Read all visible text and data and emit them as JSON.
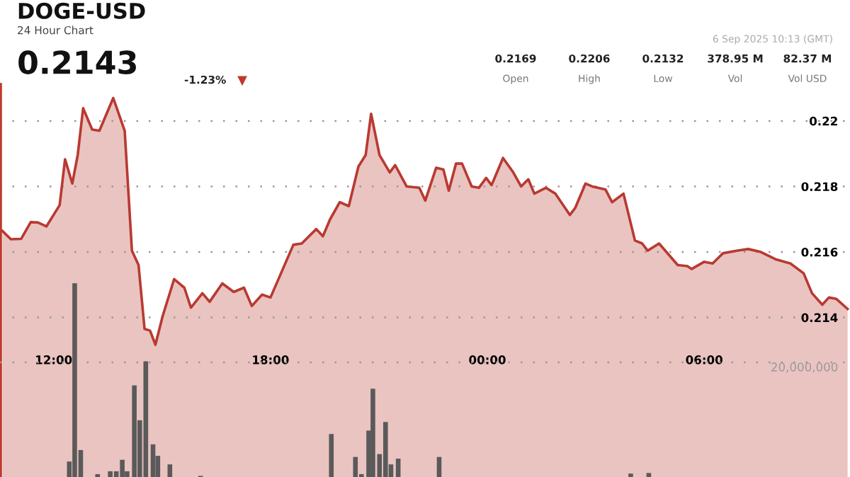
{
  "chart_data": {
    "type": "area",
    "title": "DOGE-USD",
    "subtitle": "24 Hour Chart",
    "annotations": [
      "0.2143",
      "-1.23%",
      "▼",
      "6 Sep 2025 10:13 (GMT)",
      "0.2169",
      "0.2206",
      "0.2132",
      "378.95 M",
      "82.37 M",
      "Open",
      "High",
      "Low",
      "Vol",
      "Vol USD"
    ],
    "xlim": [
      "2025-09-05T10:31",
      "2025-09-06T10:02"
    ],
    "xticks": [
      {
        "value": "2025-09-05T12:00",
        "label": "12:00"
      },
      {
        "value": "2025-09-05T18:00",
        "label": "18:00"
      },
      {
        "value": "2025-09-06T00:00",
        "label": "00:00"
      },
      {
        "value": "2025-09-06T06:00",
        "label": "06:00"
      }
    ],
    "ylim": [
      0.20913,
      0.2211
    ],
    "yticks": [
      0.214,
      0.216,
      0.218,
      0.22
    ],
    "y2lim": [
      0,
      68400000
    ],
    "y2ticks": [
      {
        "value": 20000000,
        "label": "20,000,000"
      }
    ],
    "grid": "y",
    "series": [
      {
        "color": "#b83a32",
        "x": [
          "2025-09-05T10:35",
          "2025-09-05T10:49",
          "2025-09-05T11:06",
          "2025-09-05T11:22",
          "2025-09-05T11:34",
          "2025-09-05T11:48",
          "2025-09-05T12:10",
          "2025-09-05T12:19",
          "2025-09-05T12:31",
          "2025-09-05T12:40",
          "2025-09-05T12:49",
          "2025-09-05T13:04",
          "2025-09-05T13:16",
          "2025-09-05T13:39",
          "2025-09-05T13:58",
          "2025-09-05T14:10",
          "2025-09-05T14:21",
          "2025-09-05T14:31",
          "2025-09-05T14:40",
          "2025-09-05T14:49",
          "2025-09-05T15:01",
          "2025-09-05T15:20",
          "2025-09-05T15:37",
          "2025-09-05T15:48",
          "2025-09-05T16:07",
          "2025-09-05T16:19",
          "2025-09-05T16:40",
          "2025-09-05T16:59",
          "2025-09-05T17:16",
          "2025-09-05T17:29",
          "2025-09-05T17:46",
          "2025-09-05T18:00",
          "2025-09-05T18:38",
          "2025-09-05T18:52",
          "2025-09-05T19:16",
          "2025-09-05T19:27",
          "2025-09-05T19:39",
          "2025-09-05T19:55",
          "2025-09-05T20:10",
          "2025-09-05T20:26",
          "2025-09-05T20:38",
          "2025-09-05T20:47",
          "2025-09-05T21:01",
          "2025-09-05T21:18",
          "2025-09-05T21:27",
          "2025-09-05T21:46",
          "2025-09-05T22:07",
          "2025-09-05T22:17",
          "2025-09-05T22:35",
          "2025-09-05T22:47",
          "2025-09-05T22:56",
          "2025-09-05T23:08",
          "2025-09-05T23:18",
          "2025-09-05T23:34",
          "2025-09-05T23:46",
          "2025-09-05T23:58",
          "2025-09-06T00:07",
          "2025-09-06T00:26",
          "2025-09-06T00:43",
          "2025-09-06T00:56",
          "2025-09-06T01:08",
          "2025-09-06T01:18",
          "2025-09-06T01:37",
          "2025-09-06T01:53",
          "2025-09-06T02:17",
          "2025-09-06T02:26",
          "2025-09-06T02:43",
          "2025-09-06T02:54",
          "2025-09-06T03:16",
          "2025-09-06T03:27",
          "2025-09-06T03:46",
          "2025-09-06T04:05",
          "2025-09-06T04:17",
          "2025-09-06T04:26",
          "2025-09-06T04:45",
          "2025-09-06T05:16",
          "2025-09-06T05:32",
          "2025-09-06T05:39",
          "2025-09-06T06:00",
          "2025-09-06T06:14",
          "2025-09-06T06:31",
          "2025-09-06T06:54",
          "2025-09-06T07:13",
          "2025-09-06T07:34",
          "2025-09-06T07:58",
          "2025-09-06T08:23",
          "2025-09-06T08:45",
          "2025-09-06T08:59",
          "2025-09-06T09:16",
          "2025-09-06T09:27",
          "2025-09-06T09:39",
          "2025-09-06T09:58"
        ],
        "values": [
          0.21664,
          0.21639,
          0.2164,
          0.21691,
          0.2169,
          0.21678,
          0.21743,
          0.21883,
          0.21809,
          0.21896,
          0.22039,
          0.21974,
          0.2197,
          0.2207,
          0.2197,
          0.21604,
          0.2156,
          0.21365,
          0.2136,
          0.21317,
          0.21404,
          0.21517,
          0.21491,
          0.2143,
          0.21474,
          0.21448,
          0.21504,
          0.21478,
          0.21491,
          0.21435,
          0.2147,
          0.21461,
          0.21622,
          0.21626,
          0.2167,
          0.21648,
          0.217,
          0.21752,
          0.2174,
          0.21861,
          0.21896,
          0.22022,
          0.21896,
          0.21843,
          0.21865,
          0.218,
          0.21796,
          0.21757,
          0.21857,
          0.21852,
          0.21787,
          0.2187,
          0.2187,
          0.218,
          0.21796,
          0.21826,
          0.21804,
          0.21887,
          0.21843,
          0.218,
          0.21822,
          0.21778,
          0.21796,
          0.21778,
          0.21713,
          0.21735,
          0.21809,
          0.218,
          0.21791,
          0.21752,
          0.21778,
          0.21635,
          0.21626,
          0.21604,
          0.21626,
          0.2156,
          0.21557,
          0.21548,
          0.2157,
          0.21565,
          0.21596,
          0.21604,
          0.21609,
          0.216,
          0.21578,
          0.21565,
          0.21535,
          0.21474,
          0.21439,
          0.21461,
          0.21457,
          0.21426
        ]
      },
      {
        "type": "bar",
        "axis": "y2",
        "color": "#5a5a5a",
        "x": [
          "2025-09-05T12:26",
          "2025-09-05T12:35",
          "2025-09-05T12:45",
          "2025-09-05T13:13",
          "2025-09-05T13:34",
          "2025-09-05T13:44",
          "2025-09-05T13:54",
          "2025-09-05T14:02",
          "2025-09-05T14:14",
          "2025-09-05T14:23",
          "2025-09-05T14:33",
          "2025-09-05T14:45",
          "2025-09-05T14:53",
          "2025-09-05T15:13",
          "2025-09-05T16:04",
          "2025-09-05T19:41",
          "2025-09-05T20:21",
          "2025-09-05T20:31",
          "2025-09-05T20:43",
          "2025-09-05T20:50",
          "2025-09-05T21:01",
          "2025-09-05T21:11",
          "2025-09-05T21:20",
          "2025-09-05T21:32",
          "2025-09-05T22:40",
          "2025-09-06T03:58",
          "2025-09-06T04:28"
        ],
        "values": [
          2700000,
          33800000,
          4700000,
          500000,
          1000000,
          1000000,
          3000000,
          1000000,
          16000000,
          9900000,
          20200000,
          5700000,
          3700000,
          2200000,
          200000,
          7500000,
          3500000,
          500000,
          8100000,
          15400000,
          4000000,
          9600000,
          2200000,
          3200000,
          3500000,
          600000,
          700000
        ]
      }
    ]
  }
}
